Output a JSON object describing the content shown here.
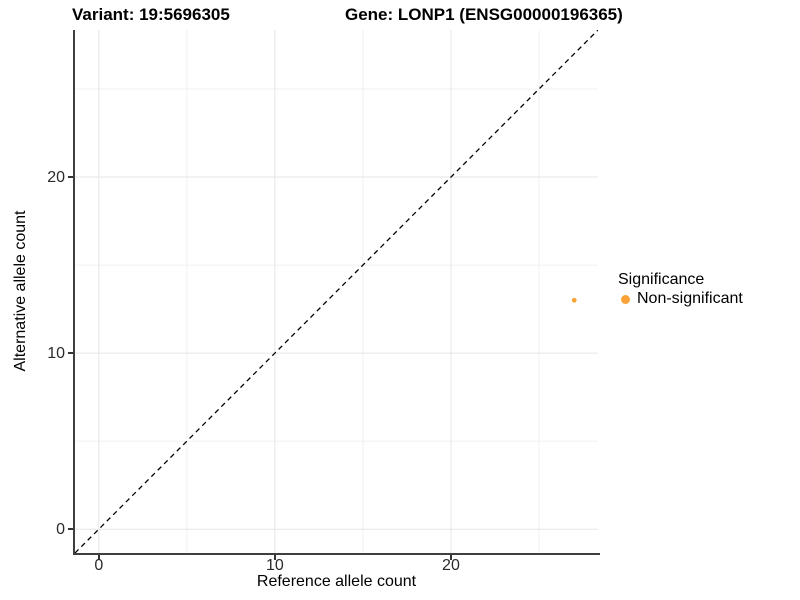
{
  "header": {
    "variant_title": "Variant: 19:5696305",
    "gene_title": "Gene: LONP1 (ENSG00000196365)"
  },
  "chart_data": {
    "type": "scatter",
    "title_left": "Variant: 19:5696305",
    "title_right": "Gene: LONP1 (ENSG00000196365)",
    "xlabel": "Reference allele count",
    "ylabel": "Alternative allele count",
    "xlim": [
      -1.35,
      28.35
    ],
    "ylim": [
      -1.35,
      28.35
    ],
    "xticks": [
      0,
      10,
      20
    ],
    "yticks": [
      0,
      10,
      20
    ],
    "minor_ticks": [
      5,
      15,
      25
    ],
    "grid": true,
    "identity_line": {
      "type": "dashed",
      "color": "#000000",
      "from": [
        -1.35,
        -1.35
      ],
      "to": [
        28.35,
        28.35
      ]
    },
    "series": [
      {
        "name": "Non-significant",
        "color": "#FBA338",
        "points": [
          {
            "x": 27,
            "y": 13
          }
        ]
      }
    ],
    "legend": {
      "position": "right",
      "title": "Significance",
      "items": [
        {
          "label": "Non-significant",
          "color": "#FBA338"
        }
      ]
    },
    "colors": {
      "grid_major": "#e6e6e6",
      "grid_minor": "#f0f0f0",
      "axis_line": "#3f3f3f",
      "point": "#FBA338"
    }
  }
}
